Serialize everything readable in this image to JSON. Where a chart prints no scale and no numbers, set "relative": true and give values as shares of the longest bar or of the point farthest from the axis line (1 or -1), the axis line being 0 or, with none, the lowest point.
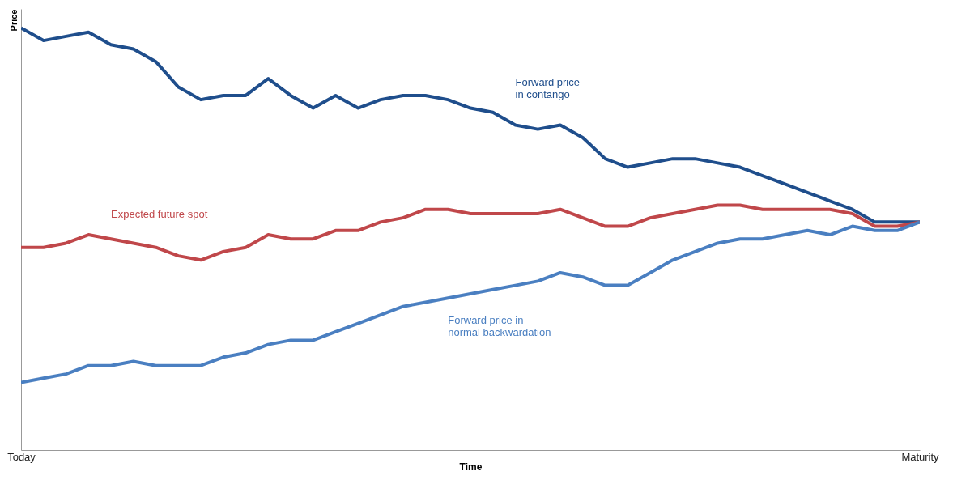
{
  "chart_data": {
    "type": "line",
    "relative": true,
    "xlabel": "Time",
    "ylabel": "Price",
    "grid": false,
    "legend": false,
    "categories": [
      "Today",
      null,
      null,
      null,
      null,
      null,
      null,
      null,
      null,
      null,
      null,
      null,
      null,
      null,
      null,
      null,
      null,
      null,
      null,
      null,
      null,
      null,
      null,
      null,
      null,
      null,
      null,
      null,
      null,
      null,
      null,
      null,
      null,
      null,
      null,
      null,
      null,
      null,
      null,
      null,
      "Maturity"
    ],
    "series": [
      {
        "name": "Forward price\nin contango",
        "color": "#1f4e8c",
        "values": [
          1.0,
          0.97,
          0.98,
          0.99,
          0.96,
          0.95,
          0.92,
          0.86,
          0.83,
          0.84,
          0.84,
          0.88,
          0.84,
          0.81,
          0.84,
          0.81,
          0.83,
          0.84,
          0.84,
          0.83,
          0.81,
          0.8,
          0.77,
          0.76,
          0.77,
          0.74,
          0.69,
          0.67,
          0.68,
          0.69,
          0.69,
          0.68,
          0.67,
          0.65,
          0.63,
          0.61,
          0.59,
          0.57,
          0.54,
          0.54,
          0.54
        ]
      },
      {
        "name": "Expected future spot",
        "color": "#c0474a",
        "values": [
          0.48,
          0.48,
          0.49,
          0.51,
          0.5,
          0.49,
          0.48,
          0.46,
          0.45,
          0.47,
          0.48,
          0.51,
          0.5,
          0.5,
          0.52,
          0.52,
          0.54,
          0.55,
          0.57,
          0.57,
          0.56,
          0.56,
          0.56,
          0.56,
          0.57,
          0.55,
          0.53,
          0.53,
          0.55,
          0.56,
          0.57,
          0.58,
          0.58,
          0.57,
          0.57,
          0.57,
          0.57,
          0.56,
          0.53,
          0.53,
          0.54
        ]
      },
      {
        "name": "Forward price in\nnormal backwardation",
        "color": "#4a7fc1",
        "values": [
          0.16,
          0.17,
          0.18,
          0.2,
          0.2,
          0.21,
          0.2,
          0.2,
          0.2,
          0.22,
          0.23,
          0.25,
          0.26,
          0.26,
          0.28,
          0.3,
          0.32,
          0.34,
          0.35,
          0.36,
          0.37,
          0.38,
          0.39,
          0.4,
          0.42,
          0.41,
          0.39,
          0.39,
          0.42,
          0.45,
          0.47,
          0.49,
          0.5,
          0.5,
          0.51,
          0.52,
          0.51,
          0.53,
          0.52,
          0.52,
          0.54
        ]
      }
    ]
  }
}
